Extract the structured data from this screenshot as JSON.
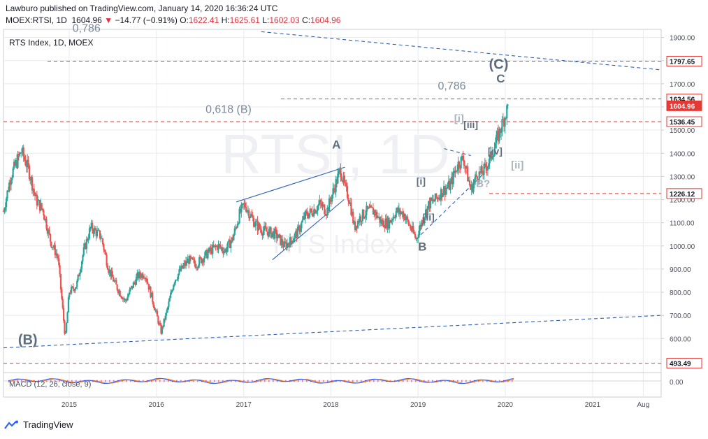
{
  "header": {
    "line1": "Lawburo published on TradingView.com, January 14, 2020 16:36:24 UTC",
    "symbol": "MOEX:RTSI, 1D",
    "last": "1604.96",
    "change_arrow": "▼",
    "change": "−14.77 (−0.91%)",
    "o_label": "O:",
    "o": "1622.41",
    "h_label": "H:",
    "h": "1625.61",
    "l_label": "L:",
    "l": "1602.03",
    "c_label": "C:",
    "c": "1604.96"
  },
  "legend": {
    "title": "RTS Index, 1D, MOEX"
  },
  "watermark": {
    "big": "RTSI, 1D",
    "small": "RTS Index"
  },
  "branding": {
    "name": "TradingView"
  },
  "colors": {
    "up": "#26a69a",
    "down": "#ef5350",
    "level": "#e53935",
    "trend": "#2b5fb5",
    "wave": "#5d6d7e",
    "wave_light": "#a9b4be",
    "grid": "#e8eaf0",
    "axis_text": "#4a4e59",
    "macd": "#2962ff",
    "signal": "#ff6d00",
    "hist": "#e91e63"
  },
  "chart_data": {
    "type": "line",
    "title": "RTS Index, 1D, MOEX",
    "xlabel": "",
    "ylabel": "",
    "ylim": [
      453,
      1935
    ],
    "grid": true,
    "y_ticks": [
      "600.00",
      "700.00",
      "800.00",
      "900.00",
      "1000.00",
      "1100.00",
      "1200.00",
      "1300.00",
      "1400.00",
      "1500.00",
      "1600.00",
      "1700.00",
      "1800.00",
      "1900.00"
    ],
    "x_ticks": [
      {
        "date": "2015-01-01",
        "label": "2015"
      },
      {
        "date": "2016-01-01",
        "label": "2016"
      },
      {
        "date": "2017-01-01",
        "label": "2017"
      },
      {
        "date": "2018-01-01",
        "label": "2018"
      },
      {
        "date": "2019-01-01",
        "label": "2019"
      },
      {
        "date": "2020-01-01",
        "label": "2020"
      },
      {
        "date": "2021-01-01",
        "label": "2021"
      },
      {
        "date": "2021-08-01",
        "label": "Aug"
      }
    ],
    "series": [
      {
        "x": [
          "2014-04-01",
          "2014-05-01",
          "2014-06-15",
          "2014-07-15",
          "2014-08-15",
          "2014-09-15",
          "2014-10-15",
          "2014-11-15",
          "2014-12-16",
          "2015-01-01",
          "2015-02-01",
          "2015-03-01",
          "2015-04-01",
          "2015-05-15",
          "2015-06-15",
          "2015-07-15",
          "2015-08-24",
          "2015-09-15",
          "2015-10-15",
          "2015-11-15",
          "2015-12-15",
          "2016-01-21",
          "2016-02-15",
          "2016-03-15",
          "2016-04-15",
          "2016-05-15",
          "2016-06-15",
          "2016-07-15",
          "2016-08-15",
          "2016-09-15",
          "2016-10-15",
          "2016-11-15",
          "2016-12-15",
          "2017-01-05",
          "2017-02-15",
          "2017-03-15",
          "2017-04-15",
          "2017-05-15",
          "2017-06-20",
          "2017-07-15",
          "2017-08-15",
          "2017-09-15",
          "2017-10-15",
          "2017-11-15",
          "2017-12-15",
          "2018-01-15",
          "2018-02-10",
          "2018-03-01",
          "2018-03-20",
          "2018-04-09",
          "2018-05-01",
          "2018-06-01",
          "2018-07-01",
          "2018-08-01",
          "2018-09-01",
          "2018-10-01",
          "2018-11-01",
          "2018-12-24",
          "2019-01-15",
          "2019-02-15",
          "2019-03-15",
          "2019-04-15",
          "2019-05-15",
          "2019-06-15",
          "2019-07-10",
          "2019-08-10",
          "2019-09-01",
          "2019-10-01",
          "2019-11-01",
          "2019-12-01",
          "2020-01-14"
        ],
        "values": [
          1150,
          1300,
          1410,
          1330,
          1200,
          1150,
          1020,
          950,
          600,
          800,
          830,
          970,
          1080,
          1040,
          900,
          830,
          760,
          810,
          870,
          880,
          770,
          630,
          720,
          850,
          900,
          940,
          920,
          950,
          980,
          1000,
          980,
          1030,
          1140,
          1180,
          1100,
          1070,
          1060,
          1050,
          1000,
          1020,
          1060,
          1130,
          1150,
          1180,
          1150,
          1250,
          1330,
          1250,
          1200,
          1080,
          1120,
          1150,
          1150,
          1100,
          1100,
          1150,
          1140,
          1030,
          1100,
          1180,
          1200,
          1240,
          1260,
          1350,
          1380,
          1240,
          1300,
          1320,
          1380,
          1470,
          1605
        ]
      }
    ],
    "price_levels": [
      {
        "value": 1797.65,
        "label": "1797.65"
      },
      {
        "value": 1634.56,
        "label": "1634.56"
      },
      {
        "value": 1604.96,
        "label": "1604.96"
      },
      {
        "value": 1536.45,
        "label": "1536.45"
      },
      {
        "value": 1226.12,
        "label": "1226.12"
      },
      {
        "value": 493.49,
        "label": "493.49"
      }
    ],
    "trend_lines": [
      {
        "style": "dashed",
        "from": {
          "x": "2014-04-01",
          "y": 560
        },
        "to": {
          "x": "2021-10-15",
          "y": 700
        }
      },
      {
        "style": "dashed",
        "from": {
          "x": "2017-03-15",
          "y": 1925
        },
        "to": {
          "x": "2021-10-15",
          "y": 1760
        }
      },
      {
        "style": "solid",
        "from": {
          "x": "2016-12-01",
          "y": 1190
        },
        "to": {
          "x": "2018-03-01",
          "y": 1340
        }
      },
      {
        "style": "solid",
        "from": {
          "x": "2017-05-01",
          "y": 940
        },
        "to": {
          "x": "2018-02-25",
          "y": 1200
        }
      },
      {
        "style": "dashed",
        "from": {
          "x": "2018-12-25",
          "y": 1030
        },
        "to": {
          "x": "2019-10-01",
          "y": 1310
        }
      },
      {
        "style": "dashed",
        "from": {
          "x": "2019-04-20",
          "y": 1420
        },
        "to": {
          "x": "2019-08-10",
          "y": 1390
        }
      }
    ],
    "annotations": [
      {
        "text": "0,786",
        "x": "2015-01-15",
        "y": 1925,
        "style": "fib"
      },
      {
        "text": "0,786",
        "x": "2019-03-25",
        "y": 1675,
        "style": "fib"
      },
      {
        "text": "0,618 (B)",
        "x": "2016-07-25",
        "y": 1575,
        "style": "fib"
      },
      {
        "text": "(C)",
        "x": "2019-10-25",
        "y": 1765,
        "style": "wave-bold"
      },
      {
        "text": "C",
        "x": "2019-11-25",
        "y": 1705,
        "style": "wave"
      },
      {
        "text": "A",
        "x": "2018-01-06",
        "y": 1420,
        "style": "wave"
      },
      {
        "text": "B",
        "x": "2019-01-01",
        "y": 980,
        "style": "wave"
      },
      {
        "text": "(B)",
        "x": "2014-06-01",
        "y": 575,
        "style": "wave-bold"
      },
      {
        "text": "[i]",
        "x": "2019-06-01",
        "y": 1535,
        "style": "wave-light"
      },
      {
        "text": "[iii]",
        "x": "2019-07-10",
        "y": 1510,
        "style": "wave-bracket"
      },
      {
        "text": "[iv]",
        "x": "2019-10-20",
        "y": 1395,
        "style": "wave-bracket"
      },
      {
        "text": "[ii]",
        "x": "2020-01-25",
        "y": 1335,
        "style": "wave-light"
      },
      {
        "text": "B?",
        "x": "2019-09-01",
        "y": 1255,
        "style": "wave-light"
      },
      {
        "text": "[i]",
        "x": "2018-12-25",
        "y": 1265,
        "style": "wave-bracket"
      },
      {
        "text": "[ii]",
        "x": "2019-01-20",
        "y": 1110,
        "style": "wave-bracket"
      }
    ],
    "macd": {
      "label": "MACD (12, 26, close, 9)",
      "tick_label": "0.00"
    }
  }
}
